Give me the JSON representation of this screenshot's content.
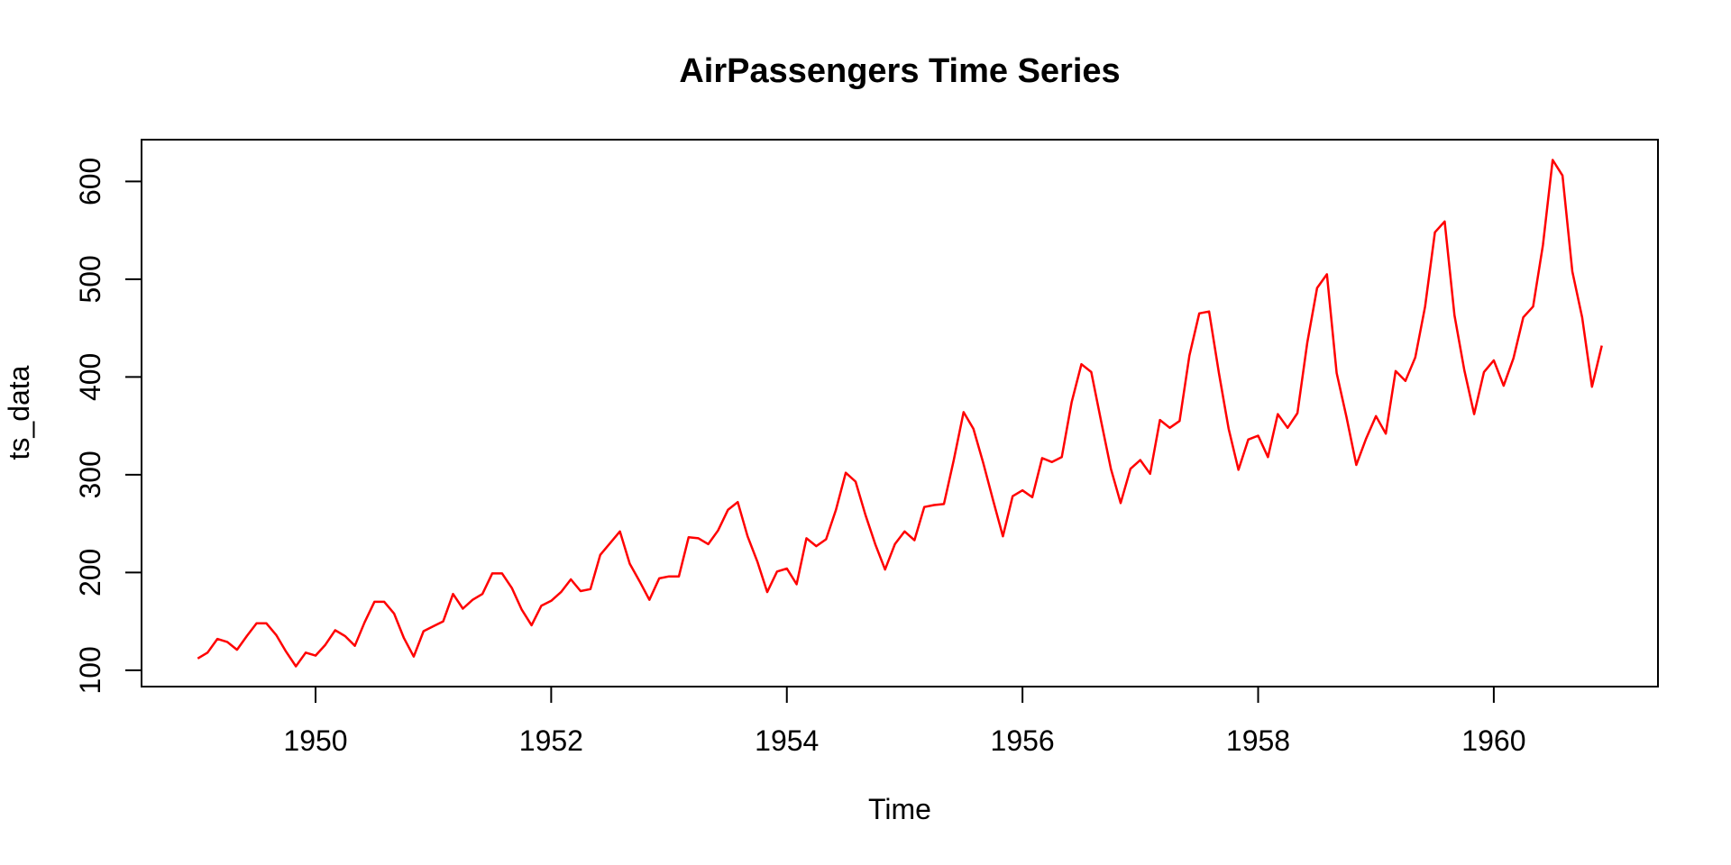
{
  "figure": {
    "background_color": "#FFFFFF"
  },
  "chart_data": {
    "type": "line",
    "title": "AirPassengers Time Series",
    "xlabel": "Time",
    "ylabel": "ts_data",
    "grid": false,
    "legend": false,
    "axis_color": "#000000",
    "text_color": "#000000",
    "xlim": [
      1948.5233,
      1961.3934
    ],
    "ylim": [
      83.28,
      642.72
    ],
    "x_ticks": [
      1950,
      1952,
      1954,
      1956,
      1958,
      1960
    ],
    "y_ticks": [
      100,
      200,
      300,
      400,
      500,
      600
    ],
    "series": [
      {
        "name": "AirPassengers",
        "color": "#FF0000",
        "start_year": 1949,
        "frequency": 12,
        "values": [
          112,
          118,
          132,
          129,
          121,
          135,
          148,
          148,
          136,
          119,
          104,
          118,
          115,
          126,
          141,
          135,
          125,
          149,
          170,
          170,
          158,
          133,
          114,
          140,
          145,
          150,
          178,
          163,
          172,
          178,
          199,
          199,
          184,
          162,
          146,
          166,
          171,
          180,
          193,
          181,
          183,
          218,
          230,
          242,
          209,
          191,
          172,
          194,
          196,
          196,
          236,
          235,
          229,
          243,
          264,
          272,
          237,
          211,
          180,
          201,
          204,
          188,
          235,
          227,
          234,
          264,
          302,
          293,
          259,
          229,
          203,
          229,
          242,
          233,
          267,
          269,
          270,
          315,
          364,
          347,
          312,
          274,
          237,
          278,
          284,
          277,
          317,
          313,
          318,
          374,
          413,
          405,
          355,
          306,
          271,
          306,
          315,
          301,
          356,
          348,
          355,
          422,
          465,
          467,
          404,
          347,
          305,
          336,
          340,
          318,
          362,
          348,
          363,
          435,
          491,
          505,
          404,
          359,
          310,
          337,
          360,
          342,
          406,
          396,
          420,
          472,
          548,
          559,
          463,
          407,
          362,
          405,
          417,
          391,
          419,
          461,
          472,
          535,
          622,
          606,
          508,
          461,
          390,
          432
        ]
      }
    ]
  }
}
